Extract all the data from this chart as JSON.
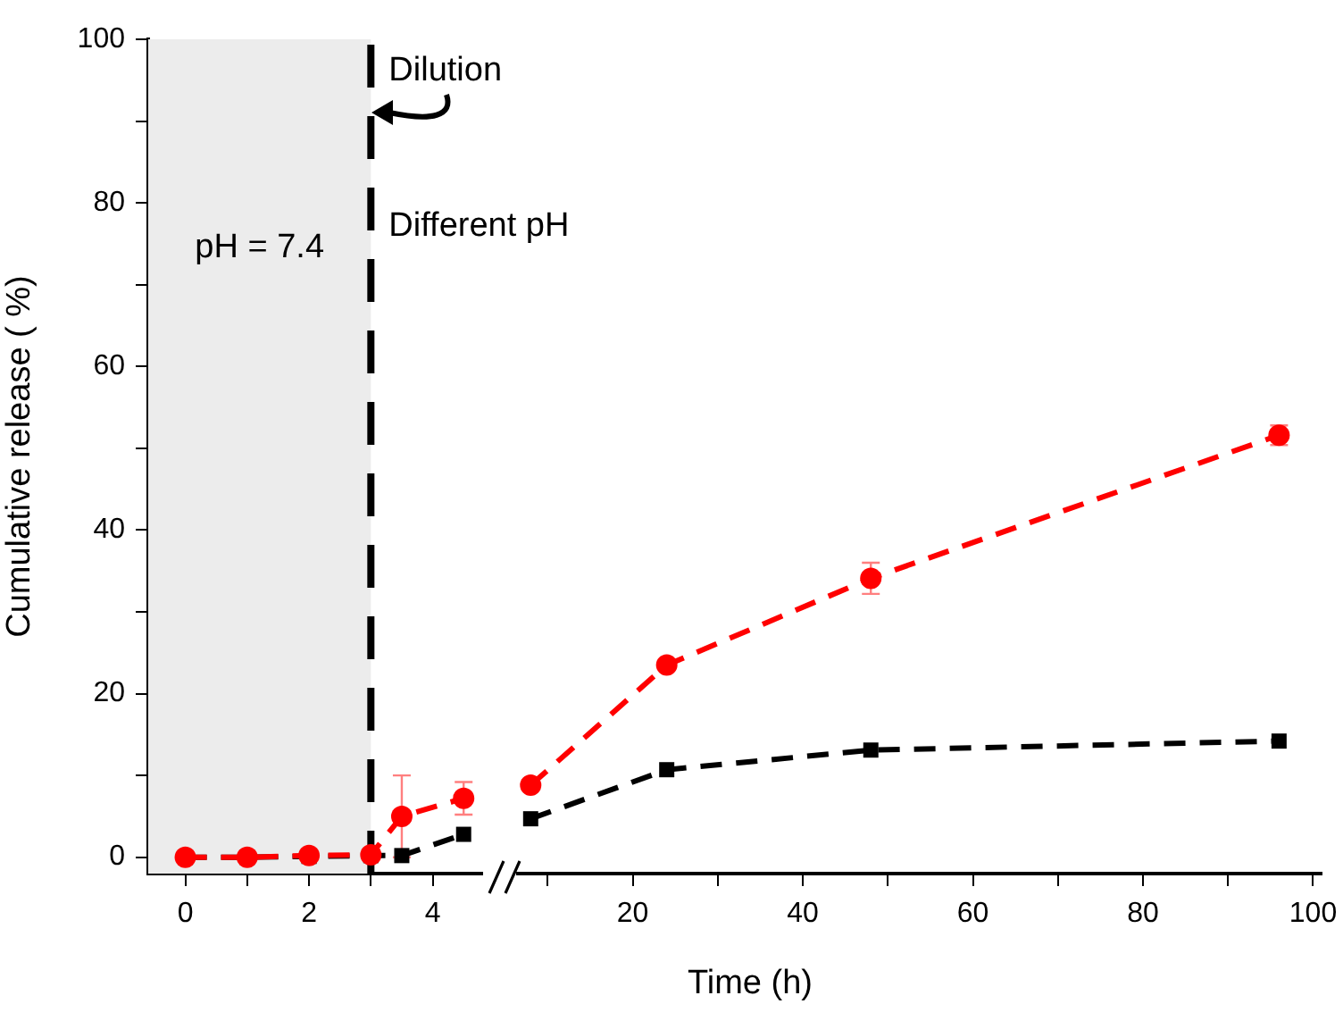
{
  "chart_data": [
    {
      "type": "line",
      "ylabel": "Cumulative release ( %)",
      "xlim": [
        -0.6,
        4.8
      ],
      "xticks": [
        0,
        {
          "value": 1,
          "label": null
        },
        2,
        {
          "value": 3,
          "label": null
        },
        4
      ],
      "ylim": [
        -2,
        100
      ],
      "yticks": [
        0,
        {
          "value": 10,
          "label": null
        },
        20,
        {
          "value": 30,
          "label": null
        },
        40,
        {
          "value": 50,
          "label": null
        },
        60,
        {
          "value": 70,
          "label": null
        },
        80,
        {
          "value": 90,
          "label": null
        },
        100
      ],
      "x": [
        0,
        1,
        2,
        3,
        3.5,
        4.5
      ],
      "series": [
        {
          "color": "#ff0000",
          "marker": "circle",
          "values": [
            0,
            0,
            0.2,
            0.3,
            5.0,
            7.2
          ],
          "errors": [
            null,
            null,
            null,
            null,
            5,
            2
          ]
        },
        {
          "color": "#000000",
          "marker": "square",
          "values": [
            0,
            0,
            0.1,
            0.2,
            0.2,
            2.8
          ]
        }
      ],
      "line_style": "dashed",
      "grid": false,
      "legend": false,
      "bands": [
        {
          "axis": "x",
          "from": -0.6,
          "to": 3,
          "label": "pH = 7.4",
          "color": "#ececec"
        }
      ],
      "ref_lines": [
        {
          "axis": "x",
          "value": 3,
          "color": "#000000",
          "line_style": "dashed"
        }
      ],
      "annotations": [
        "Dilution",
        "Different pH"
      ]
    },
    {
      "type": "line",
      "xlabel": "Time (h)",
      "xlim": [
        6.5,
        101
      ],
      "xticks": [
        {
          "value": 10,
          "label": null
        },
        20,
        {
          "value": 30,
          "label": null
        },
        40,
        {
          "value": 50,
          "label": null
        },
        60,
        {
          "value": 70,
          "label": null
        },
        80,
        {
          "value": 90,
          "label": null
        },
        100
      ],
      "ylim": [
        -2,
        100
      ],
      "tick_labels": "x",
      "x": [
        8,
        24,
        48,
        96
      ],
      "series": [
        {
          "color": "#ff0000",
          "marker": "circle",
          "values": [
            8.8,
            23.5,
            34.1,
            51.6
          ],
          "errors": [
            null,
            null,
            1.9,
            1.2
          ]
        },
        {
          "color": "#000000",
          "marker": "square",
          "values": [
            4.7,
            10.7,
            13.1,
            14.2
          ]
        }
      ],
      "line_style": "dashed",
      "grid": false,
      "legend": false
    }
  ]
}
